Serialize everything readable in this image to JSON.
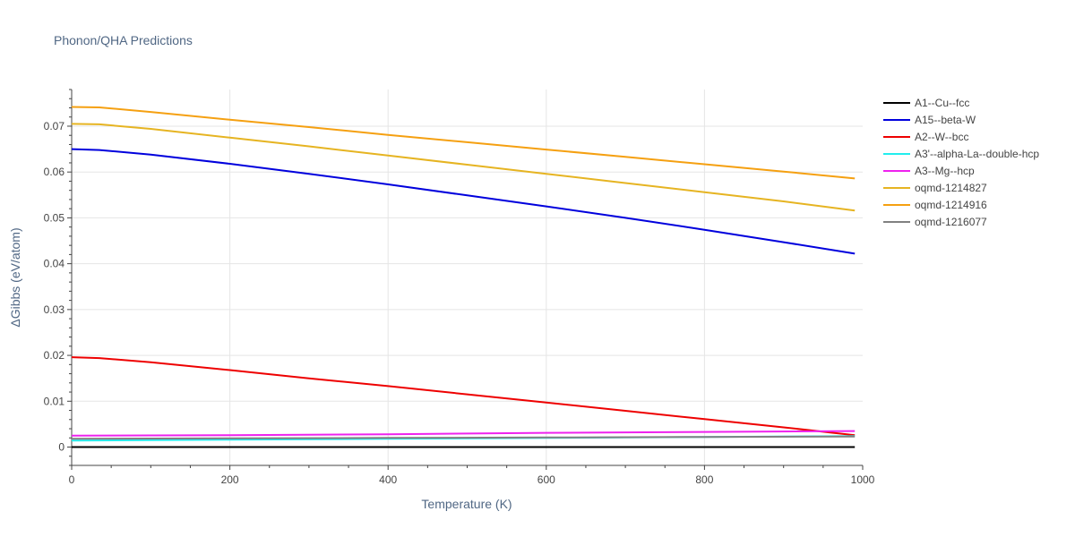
{
  "chart_data": {
    "type": "line",
    "title": "Phonon/QHA Predictions",
    "xlabel": "Temperature (K)",
    "ylabel": "ΔGibbs (eV/atom)",
    "xlim": [
      0,
      1000
    ],
    "ylim": [
      -0.004,
      0.078
    ],
    "x_ticks": [
      0,
      200,
      400,
      600,
      800,
      1000
    ],
    "y_ticks": [
      0,
      0.01,
      0.02,
      0.03,
      0.04,
      0.05,
      0.06,
      0.07
    ],
    "x_tick_labels": [
      "0",
      "200",
      "400",
      "600",
      "800",
      "1000"
    ],
    "y_tick_labels": [
      "0",
      "0.01",
      "0.02",
      "0.03",
      "0.04",
      "0.05",
      "0.06",
      "0.07"
    ],
    "grid": true,
    "legend_position": "right",
    "series": [
      {
        "name": "A1--Cu--fcc",
        "color": "#000000",
        "x": [
          0,
          990
        ],
        "y": [
          0,
          0
        ]
      },
      {
        "name": "A15--beta-W",
        "color": "#0000dd",
        "x": [
          0,
          35,
          100,
          200,
          300,
          400,
          500,
          600,
          700,
          800,
          900,
          990
        ],
        "y": [
          0.065,
          0.0648,
          0.0638,
          0.0618,
          0.0596,
          0.0573,
          0.0549,
          0.0525,
          0.05,
          0.0474,
          0.0447,
          0.0422
        ]
      },
      {
        "name": "A2--W--bcc",
        "color": "#ee0000",
        "x": [
          0,
          35,
          100,
          200,
          300,
          400,
          500,
          600,
          700,
          800,
          900,
          990
        ],
        "y": [
          0.0196,
          0.0194,
          0.0185,
          0.0168,
          0.015,
          0.0133,
          0.0115,
          0.0097,
          0.0079,
          0.0061,
          0.0043,
          0.0026
        ]
      },
      {
        "name": "A3'--alpha-La--double-hcp",
        "color": "#22eeee",
        "x": [
          0,
          200,
          400,
          600,
          800,
          990
        ],
        "y": [
          0.0014,
          0.0016,
          0.0018,
          0.002,
          0.0022,
          0.0024
        ]
      },
      {
        "name": "A3--Mg--hcp",
        "color": "#ee22ee",
        "x": [
          0,
          200,
          400,
          600,
          800,
          990
        ],
        "y": [
          0.0025,
          0.0026,
          0.0028,
          0.0031,
          0.0033,
          0.0035
        ]
      },
      {
        "name": "oqmd-1214827",
        "color": "#e6b422",
        "x": [
          0,
          35,
          100,
          200,
          300,
          400,
          500,
          600,
          700,
          800,
          900,
          990
        ],
        "y": [
          0.0705,
          0.0704,
          0.0694,
          0.0675,
          0.0656,
          0.0636,
          0.0616,
          0.0596,
          0.0576,
          0.0556,
          0.0536,
          0.0516
        ]
      },
      {
        "name": "oqmd-1214916",
        "color": "#f5a011",
        "x": [
          0,
          35,
          100,
          200,
          300,
          400,
          500,
          600,
          700,
          800,
          900,
          990
        ],
        "y": [
          0.0742,
          0.0741,
          0.0731,
          0.0714,
          0.0698,
          0.0681,
          0.0665,
          0.0649,
          0.0633,
          0.0617,
          0.0601,
          0.0586
        ]
      },
      {
        "name": "oqmd-1216077",
        "color": "#808080",
        "x": [
          0,
          200,
          400,
          600,
          800,
          990
        ],
        "y": [
          0.0018,
          0.0019,
          0.002,
          0.0021,
          0.0022,
          0.0023
        ]
      }
    ]
  }
}
